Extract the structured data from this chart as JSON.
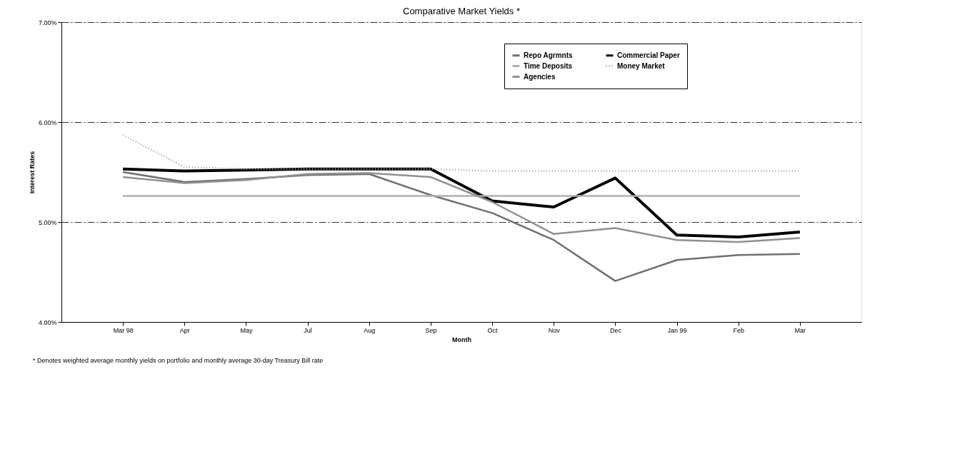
{
  "chart_data": {
    "type": "line",
    "title": "Comparative  Market Yields *",
    "xlabel": "Month",
    "ylabel": "Interest Rates",
    "categories": [
      "Mar 98",
      "Apr",
      "May",
      "Jul",
      "Aug",
      "Sep",
      "Oct",
      "Nov",
      "Dec",
      "Jan 99",
      "Feb",
      "Mar"
    ],
    "series": [
      {
        "name": "Repo Agrmnts",
        "color": "#707070",
        "values": [
          5.5,
          5.4,
          5.43,
          5.47,
          5.48,
          5.27,
          5.09,
          4.82,
          4.41,
          4.62,
          4.67,
          4.68
        ]
      },
      {
        "name": "Commercial Paper",
        "color": "#000000",
        "values": [
          5.53,
          5.51,
          5.52,
          5.53,
          5.53,
          5.53,
          5.21,
          5.15,
          5.44,
          4.87,
          4.85,
          4.9
        ]
      },
      {
        "name": "Time Deposits",
        "color": "#b0b0b0",
        "values": [
          5.26,
          5.26,
          5.26,
          5.26,
          5.26,
          5.26,
          5.26,
          5.26,
          5.26,
          5.26,
          5.26,
          5.26
        ]
      },
      {
        "name": "Money Market",
        "color": "#a0a0a0",
        "line_style": "dotted",
        "values": [
          5.87,
          5.55,
          5.53,
          5.53,
          5.53,
          5.53,
          5.51,
          5.51,
          5.51,
          5.51,
          5.51,
          5.51
        ]
      },
      {
        "name": "Agencies",
        "color": "#909090",
        "values": [
          5.45,
          5.39,
          5.42,
          5.48,
          5.49,
          5.45,
          5.2,
          4.88,
          4.94,
          4.82,
          4.8,
          4.84
        ]
      }
    ],
    "ylim": [
      4,
      7
    ],
    "yticks": [
      {
        "value": 4,
        "label": "4.00%"
      },
      {
        "value": 5,
        "label": "5.00%"
      },
      {
        "value": 6,
        "label": "6.00%"
      },
      {
        "value": 7,
        "label": "7.00%"
      }
    ],
    "grid": "y",
    "legend": "top",
    "line_style": "solid",
    "marker": "none",
    "annotations": [
      "* Denotes weighted average monthly yields on portfolio and monthly average 30-day Treasury Bill rate"
    ]
  }
}
